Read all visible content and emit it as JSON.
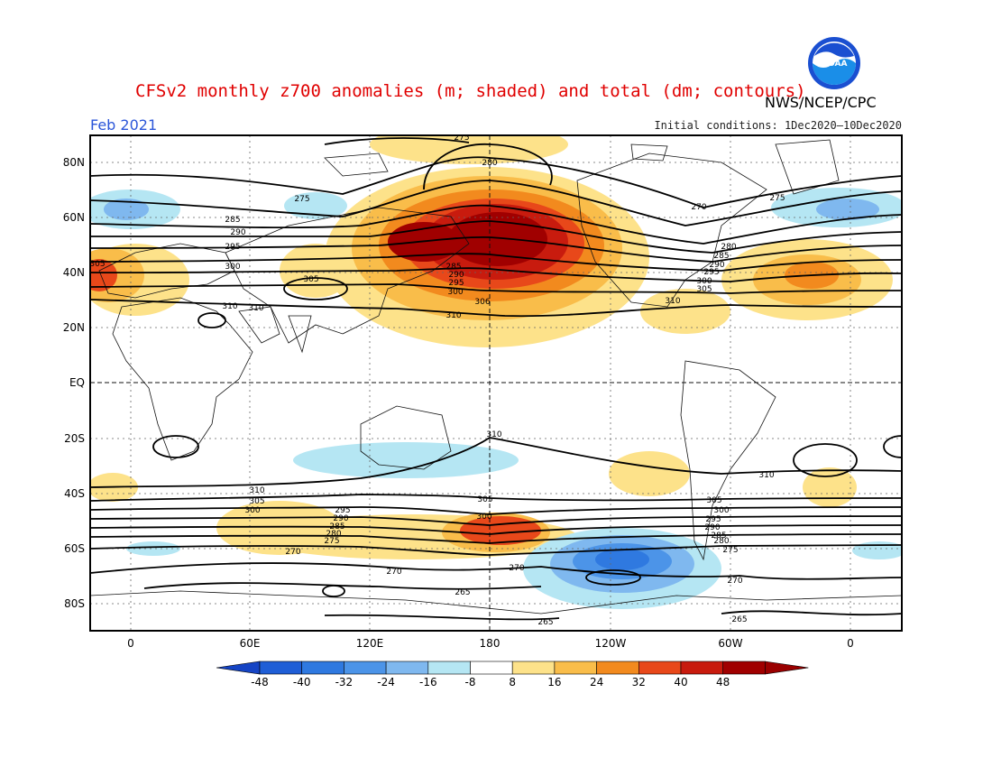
{
  "title": "CFSv2 monthly z700 anomalies (m; shaded) and total (dm; contours)",
  "agency": "NWS/NCEP/CPC",
  "logo_text": "NOAA",
  "month": "Feb 2021",
  "initial_conditions": "Initial conditions: 1Dec2020—10Dec2020",
  "lat_labels": [
    "80N",
    "60N",
    "40N",
    "20N",
    "EQ",
    "20S",
    "40S",
    "60S",
    "80S"
  ],
  "lon_labels": [
    "0",
    "60E",
    "120E",
    "180",
    "120W",
    "60W",
    "0"
  ],
  "colorbar": {
    "ticks": [
      "-48",
      "-40",
      "-32",
      "-24",
      "-16",
      "-8",
      "8",
      "16",
      "24",
      "32",
      "40",
      "48"
    ],
    "colors": [
      "#1f5ed6",
      "#2f79e0",
      "#4c94e8",
      "#7fb8ef",
      "#b5e6f3",
      "#ffffff",
      "#fde28a",
      "#f9bd4a",
      "#f28a1e",
      "#e8481a",
      "#c81b0e",
      "#a00000"
    ],
    "low_color": "#1544c4",
    "high_color": "#9a0000"
  },
  "contour_labels": {
    "nh_west": [
      "285",
      "290",
      "295",
      "300",
      "305"
    ],
    "nh_pacific": [
      "285",
      "290",
      "295",
      "300",
      "305",
      "310"
    ],
    "nh_east": [
      "280",
      "285",
      "290",
      "295",
      "300",
      "305",
      "310"
    ],
    "sh_mid": [
      "310",
      "305",
      "300",
      "295",
      "290",
      "285",
      "280",
      "275"
    ],
    "sh_east": [
      "305",
      "300",
      "295",
      "290",
      "285",
      "280",
      "275"
    ],
    "misc": [
      "275",
      "280",
      "275",
      "270",
      "275",
      "310",
      "306",
      "310",
      "270",
      "270",
      "270",
      "265",
      "265",
      "270",
      "265",
      "310",
      "300",
      "305",
      "310"
    ]
  }
}
